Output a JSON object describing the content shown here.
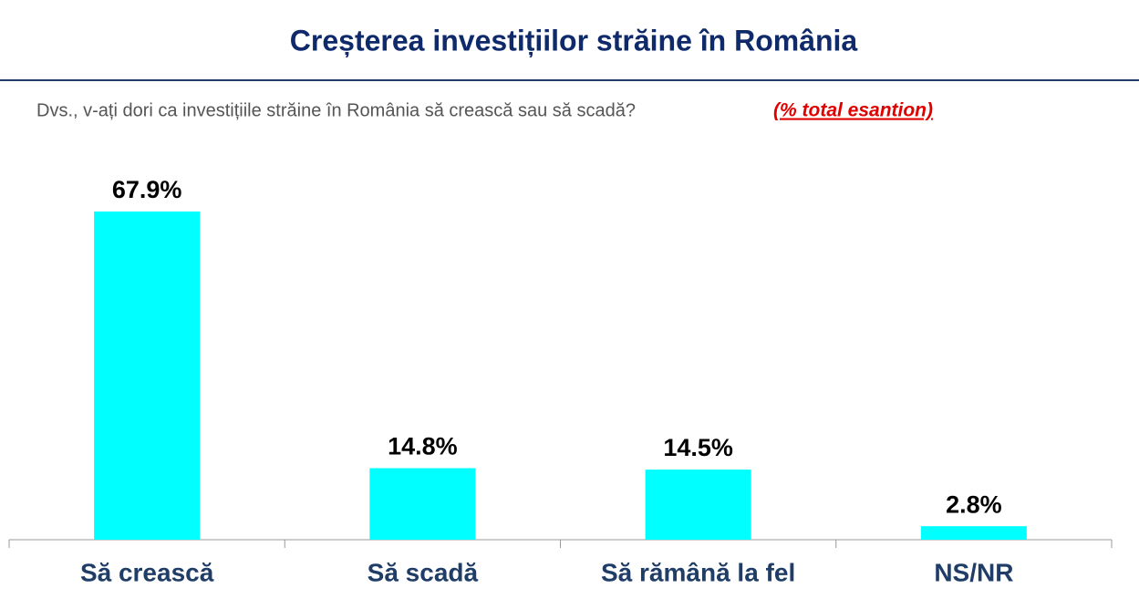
{
  "chart_data": {
    "type": "bar",
    "title": "Creșterea investițiilor străine în România",
    "subtitle": "Dvs., v-ați dori ca investițiile străine în România să crească sau să scadă?",
    "note": "(% total esantion)",
    "categories": [
      "Să crească",
      "Să scadă",
      "Să rămână la fel",
      "NS/NR"
    ],
    "values": [
      67.9,
      14.8,
      14.5,
      2.8
    ],
    "value_labels": [
      "67.9%",
      "14.8%",
      "14.5%",
      "2.8%"
    ],
    "color": "#00ffff"
  }
}
